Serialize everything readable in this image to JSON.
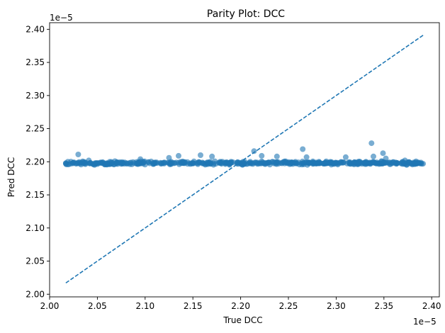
{
  "chart_data": {
    "type": "scatter",
    "title": "Parity Plot: DCC",
    "xlabel": "True DCC",
    "ylabel": "Pred DCC",
    "x_offset_text": "1e−5",
    "y_offset_text": "1e−5",
    "xlim": [
      2.0,
      2.408
    ],
    "ylim": [
      1.996,
      2.41
    ],
    "x_ticks": [
      2.0,
      2.05,
      2.1,
      2.15,
      2.2,
      2.25,
      2.3,
      2.35,
      2.4
    ],
    "y_ticks": [
      2.0,
      2.05,
      2.1,
      2.15,
      2.2,
      2.25,
      2.3,
      2.35,
      2.4
    ],
    "x_tick_labels": [
      "2.00",
      "2.05",
      "2.10",
      "2.15",
      "2.20",
      "2.25",
      "2.30",
      "2.35",
      "2.40"
    ],
    "y_tick_labels": [
      "2.00",
      "2.05",
      "2.10",
      "2.15",
      "2.20",
      "2.25",
      "2.30",
      "2.35",
      "2.40"
    ],
    "grid": false,
    "point_color": "#1f77b4",
    "line_color": "#1f77b4",
    "parity_line": {
      "x": [
        2.017,
        2.391
      ],
      "y": [
        2.017,
        2.391
      ]
    },
    "series": [
      {
        "x_range": [
          2.017,
          2.391
        ],
        "y_center": 2.198,
        "count": 520,
        "outliers": [
          {
            "x": 2.03,
            "y": 2.211
          },
          {
            "x": 2.041,
            "y": 2.202
          },
          {
            "x": 2.095,
            "y": 2.204
          },
          {
            "x": 2.125,
            "y": 2.206
          },
          {
            "x": 2.135,
            "y": 2.209
          },
          {
            "x": 2.158,
            "y": 2.21
          },
          {
            "x": 2.17,
            "y": 2.208
          },
          {
            "x": 2.214,
            "y": 2.216
          },
          {
            "x": 2.222,
            "y": 2.209
          },
          {
            "x": 2.238,
            "y": 2.208
          },
          {
            "x": 2.265,
            "y": 2.219
          },
          {
            "x": 2.269,
            "y": 2.207
          },
          {
            "x": 2.31,
            "y": 2.207
          },
          {
            "x": 2.337,
            "y": 2.228
          },
          {
            "x": 2.339,
            "y": 2.208
          },
          {
            "x": 2.349,
            "y": 2.213
          },
          {
            "x": 2.352,
            "y": 2.205
          },
          {
            "x": 2.372,
            "y": 2.202
          },
          {
            "x": 2.391,
            "y": 2.197
          }
        ]
      }
    ]
  }
}
